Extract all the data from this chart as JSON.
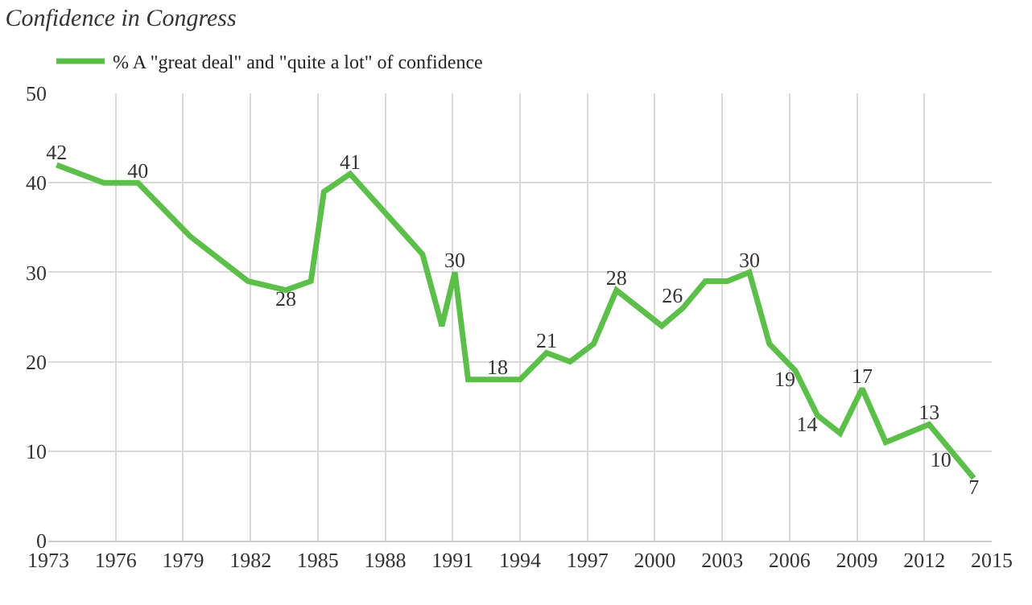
{
  "chart_data": {
    "type": "line",
    "title": "Confidence in Congress",
    "x": [
      1973.37,
      1975.47,
      1976.99,
      1979.32,
      1981.89,
      1983.57,
      1984.69,
      1985.27,
      1986.44,
      1989.66,
      1990.52,
      1991.1,
      1991.69,
      1993.0,
      1994.0,
      1995.18,
      1996.23,
      1997.28,
      1998.29,
      2000.31,
      2001.25,
      2002.25,
      2003.23,
      2004.21,
      2005.1,
      2006.26,
      2007.24,
      2008.25,
      2009.23,
      2010.28,
      2012.21,
      2013.2,
      2014.2
    ],
    "series": [
      {
        "name": "% A \"great deal\" and \"quite a lot\" of confidence",
        "color": "#5cbf4a",
        "values": [
          42,
          40,
          40,
          34,
          29,
          28,
          29,
          39,
          41,
          32,
          24,
          30,
          18,
          18,
          18,
          21,
          20,
          22,
          28,
          24,
          26,
          29,
          29,
          30,
          22,
          19,
          14,
          12,
          17,
          11,
          13,
          10,
          7
        ],
        "value_labels": [
          "42",
          null,
          "40",
          null,
          null,
          "28",
          null,
          null,
          "41",
          null,
          null,
          "30",
          null,
          "18",
          null,
          "21",
          null,
          null,
          "28",
          null,
          "26",
          null,
          null,
          "30",
          null,
          "19",
          "14",
          null,
          "17",
          null,
          "13",
          "10",
          "7"
        ]
      }
    ],
    "xlim": [
      1973,
      2015
    ],
    "xticks": [
      1973,
      1976,
      1979,
      1982,
      1985,
      1988,
      1991,
      1994,
      1997,
      2000,
      2003,
      2006,
      2009,
      2012,
      2015
    ],
    "ylim": [
      0,
      50
    ],
    "yticks": [
      0,
      10,
      20,
      30,
      40,
      50
    ],
    "grid": true,
    "legend": "top left",
    "marker": "none",
    "line_style": "solid"
  }
}
